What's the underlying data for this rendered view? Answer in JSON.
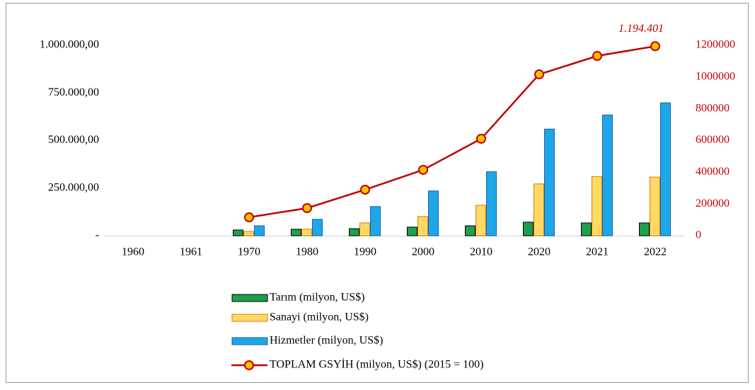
{
  "chart_data": {
    "type": "bar",
    "categories": [
      "1960",
      "1961",
      "1970",
      "1980",
      "1990",
      "2000",
      "2010",
      "2020",
      "2021",
      "2022"
    ],
    "series": [
      {
        "name": "Tarım (milyon, US$)",
        "color": "#1ca04c",
        "values": [
          null,
          null,
          30000,
          34000,
          37000,
          45000,
          52000,
          71000,
          67000,
          67000
        ]
      },
      {
        "name": "Sanayi  (milyon, US$)",
        "color": "#ffd966",
        "values": [
          null,
          null,
          22000,
          34000,
          67000,
          101000,
          160000,
          272000,
          310000,
          308000
        ]
      },
      {
        "name": "Hizmetler  (milyon, US$)",
        "color": "#1ea7e8",
        "values": [
          null,
          null,
          52000,
          86000,
          153000,
          235000,
          336000,
          560000,
          634000,
          698000
        ]
      },
      {
        "name": "TOPLAM GSYİH (milyon, US$) (2015 = 100)",
        "color": "#c00000",
        "type": "line",
        "axis": "y2",
        "values": [
          null,
          null,
          116000,
          174000,
          290000,
          415000,
          611000,
          1017000,
          1133000,
          1194401
        ],
        "value_labels": [
          null,
          null,
          null,
          null,
          null,
          null,
          null,
          null,
          null,
          "1.194.401"
        ]
      }
    ],
    "ylim": [
      0,
      1000000
    ],
    "yticks": [
      {
        "value": 0,
        "label": "-"
      },
      {
        "value": 250000,
        "label": "250.000,00"
      },
      {
        "value": 500000,
        "label": "500.000,00"
      },
      {
        "value": 750000,
        "label": "750.000,00"
      },
      {
        "value": 1000000,
        "label": "1.000.000,00"
      }
    ],
    "y2lim": [
      0,
      1200000
    ],
    "y2ticks": [
      0,
      200000,
      400000,
      600000,
      800000,
      1000000,
      1200000
    ],
    "legend": "bottom"
  }
}
